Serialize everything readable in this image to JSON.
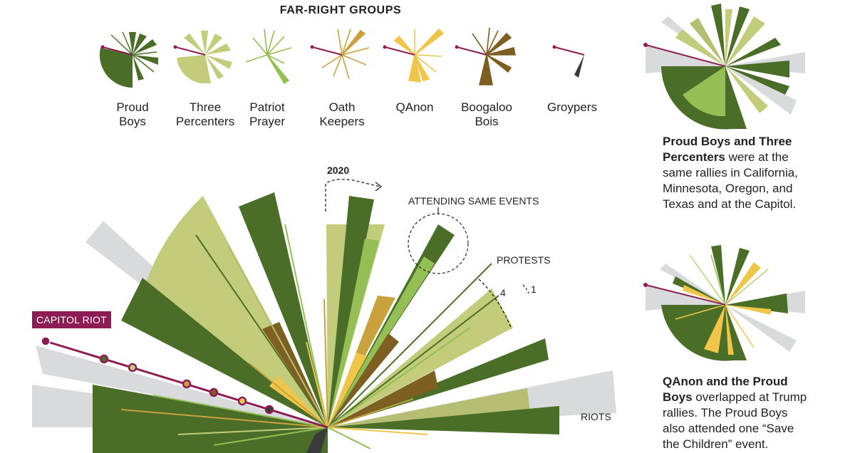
{
  "legend": {
    "title": "FAR-RIGHT GROUPS",
    "groups": [
      {
        "label_line1": "Proud",
        "label_line2": "Boys",
        "color": "#4a6e28"
      },
      {
        "label_line1": "Three",
        "label_line2": "Percenters",
        "color": "#c2cc7b"
      },
      {
        "label_line1": "Patriot",
        "label_line2": "Prayer",
        "color": "#93bf55"
      },
      {
        "label_line1": "Oath",
        "label_line2": "Keepers",
        "color": "#c9a23e"
      },
      {
        "label_line1": "QAnon",
        "label_line2": "",
        "color": "#f0c64a"
      },
      {
        "label_line1": "Boogaloo",
        "label_line2": "Bois",
        "color": "#7d5f22"
      },
      {
        "label_line1": "Groypers",
        "label_line2": "",
        "color": "#3a3a3a"
      }
    ]
  },
  "main": {
    "year_label": "2020",
    "attending_label": "ATTENDING SAME EVENTS",
    "protests_label": "PROTESTS",
    "scale_4": "4",
    "scale_1": "1",
    "capitol_label": "CAPITOL RIOT",
    "riots_label": "RIOTS"
  },
  "side": {
    "note1_bold": "Proud Boys and Three Percenters",
    "note1_rest": " were at the same rallies in California, Minnesota, Oregon, and Texas and at the Capitol.",
    "note2_bold": "QAnon and the Proud Boys",
    "note2_rest": " overlapped at Trump rallies. The Proud Boys also attended one “Save the Children” event."
  },
  "colors": {
    "proud_boys": "#4a6e28",
    "three_percenters": "#c2cc7b",
    "patriot_prayer": "#93bf55",
    "oath_keepers": "#c9a23e",
    "qanon": "#f0c64a",
    "boogaloo": "#7d5f22",
    "groypers": "#3a3a3a",
    "riot_gray": "#d9dadc",
    "capitol": "#8e1c54"
  }
}
